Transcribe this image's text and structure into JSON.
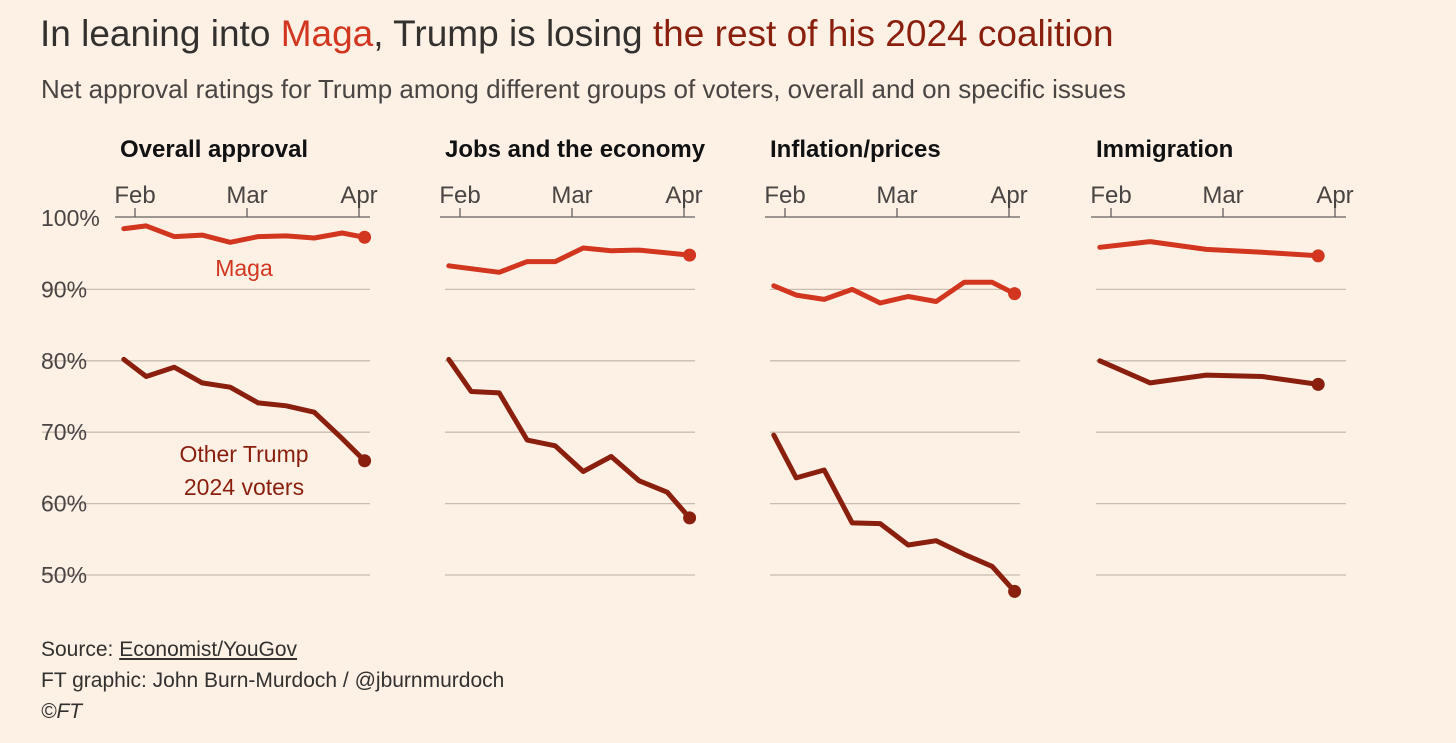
{
  "title": {
    "prefix": "In leaning into ",
    "highlight_maga": "Maga",
    "middle": ", Trump is losing ",
    "highlight_rest": "the rest of his 2024 coalition"
  },
  "subtitle": "Net approval ratings for Trump among different groups of voters, overall and on specific issues",
  "colors": {
    "maga": "#d2361f",
    "other": "#8a1f0e",
    "background": "#fdf1e6",
    "grid": "#c9bcb1",
    "axis": "#66605c",
    "text": "#33302e"
  },
  "chart_data": [
    {
      "type": "line",
      "panel_title": "Overall approval",
      "x_ticks": [
        "Feb",
        "Mar",
        "Apr"
      ],
      "y_ticks": [
        "100%",
        "90%",
        "80%",
        "70%",
        "60%",
        "50%"
      ],
      "ylim": [
        50,
        100
      ],
      "xlim": [
        0,
        2
      ],
      "series": [
        {
          "name": "Maga",
          "key": "maga",
          "x": [
            -0.1,
            0.1,
            0.35,
            0.6,
            0.85,
            1.1,
            1.35,
            1.6,
            1.85,
            2.05
          ],
          "values": [
            98.5,
            98.9,
            97.4,
            97.6,
            96.6,
            97.4,
            97.5,
            97.2,
            97.9,
            97.3
          ]
        },
        {
          "name": "Other Trump 2024 voters",
          "key": "other",
          "x": [
            -0.1,
            0.1,
            0.35,
            0.6,
            0.85,
            1.1,
            1.35,
            1.6,
            1.85,
            2.05
          ],
          "values": [
            80.2,
            77.8,
            79.1,
            76.9,
            76.3,
            74.1,
            73.7,
            72.8,
            69.1,
            66.0
          ]
        }
      ],
      "annotations": [
        {
          "text": "Maga",
          "series": "maga"
        },
        {
          "lines": [
            "Other Trump",
            "2024 voters"
          ],
          "series": "other"
        }
      ]
    },
    {
      "type": "line",
      "panel_title": "Jobs and the economy",
      "x_ticks": [
        "Feb",
        "Mar",
        "Apr"
      ],
      "ylim": [
        50,
        100
      ],
      "xlim": [
        0,
        2
      ],
      "series": [
        {
          "key": "maga",
          "x": [
            -0.1,
            0.35,
            0.6,
            0.85,
            1.1,
            1.35,
            1.6,
            2.05
          ],
          "values": [
            93.3,
            92.4,
            93.9,
            93.9,
            95.8,
            95.4,
            95.5,
            94.8
          ]
        },
        {
          "key": "other",
          "x": [
            -0.1,
            0.1,
            0.35,
            0.6,
            0.85,
            1.1,
            1.35,
            1.6,
            1.85,
            2.05
          ],
          "values": [
            80.2,
            75.7,
            75.5,
            68.9,
            68.1,
            64.5,
            66.6,
            63.2,
            61.6,
            58.0
          ]
        }
      ]
    },
    {
      "type": "line",
      "panel_title": "Inflation/prices",
      "x_ticks": [
        "Feb",
        "Mar",
        "Apr"
      ],
      "ylim": [
        50,
        100
      ],
      "xlim": [
        0,
        2
      ],
      "series": [
        {
          "key": "maga",
          "x": [
            -0.1,
            0.1,
            0.35,
            0.6,
            0.85,
            1.1,
            1.35,
            1.6,
            1.85,
            2.05
          ],
          "values": [
            90.5,
            89.2,
            88.6,
            90.0,
            88.1,
            89.0,
            88.3,
            91.0,
            91.0,
            89.4
          ]
        },
        {
          "key": "other",
          "x": [
            -0.1,
            0.1,
            0.35,
            0.6,
            0.85,
            1.1,
            1.35,
            1.6,
            1.85,
            2.05
          ],
          "values": [
            69.6,
            63.6,
            64.7,
            57.3,
            57.2,
            54.2,
            54.8,
            52.9,
            51.2,
            47.7
          ]
        }
      ]
    },
    {
      "type": "line",
      "panel_title": "Immigration",
      "x_ticks": [
        "Feb",
        "Mar",
        "Apr"
      ],
      "ylim": [
        50,
        100
      ],
      "xlim": [
        0,
        2
      ],
      "series": [
        {
          "key": "maga",
          "x": [
            -0.1,
            0.35,
            0.85,
            1.35,
            1.85
          ],
          "values": [
            95.9,
            96.7,
            95.6,
            95.2,
            94.7
          ]
        },
        {
          "key": "other",
          "x": [
            -0.1,
            0.35,
            0.85,
            1.35,
            1.85
          ],
          "values": [
            80.0,
            76.9,
            78.0,
            77.8,
            76.7
          ]
        }
      ]
    }
  ],
  "footer": {
    "source_label": "Source: ",
    "source_link": "Economist/YouGov",
    "graphic_credit": "FT graphic: John Burn-Murdoch / @jburnmurdoch",
    "copyright": "©FT"
  }
}
